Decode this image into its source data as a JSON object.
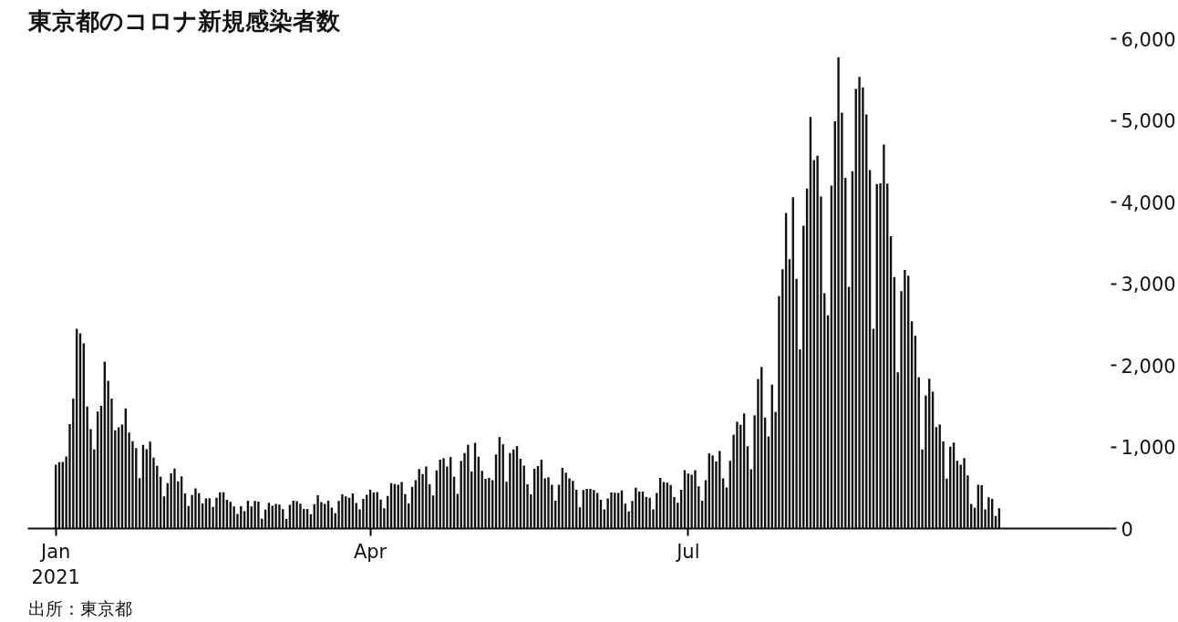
{
  "chart_data": {
    "type": "bar",
    "title": "東京都のコロナ新規感染者数",
    "color": "#111111",
    "grid": false,
    "x": [
      "2021-01-01",
      "2021-01-02",
      "2021-01-03",
      "2021-01-04",
      "2021-01-05",
      "2021-01-06",
      "2021-01-07",
      "2021-01-08",
      "2021-01-09",
      "2021-01-10",
      "2021-01-11",
      "2021-01-12",
      "2021-01-13",
      "2021-01-14",
      "2021-01-15",
      "2021-01-16",
      "2021-01-17",
      "2021-01-18",
      "2021-01-19",
      "2021-01-20",
      "2021-01-21",
      "2021-01-22",
      "2021-01-23",
      "2021-01-24",
      "2021-01-25",
      "2021-01-26",
      "2021-01-27",
      "2021-01-28",
      "2021-01-29",
      "2021-01-30",
      "2021-01-31",
      "2021-02-01",
      "2021-02-02",
      "2021-02-03",
      "2021-02-04",
      "2021-02-05",
      "2021-02-06",
      "2021-02-07",
      "2021-02-08",
      "2021-02-09",
      "2021-02-10",
      "2021-02-11",
      "2021-02-12",
      "2021-02-13",
      "2021-02-14",
      "2021-02-15",
      "2021-02-16",
      "2021-02-17",
      "2021-02-18",
      "2021-02-19",
      "2021-02-20",
      "2021-02-21",
      "2021-02-22",
      "2021-02-23",
      "2021-02-24",
      "2021-02-25",
      "2021-02-26",
      "2021-02-27",
      "2021-02-28",
      "2021-03-01",
      "2021-03-02",
      "2021-03-03",
      "2021-03-04",
      "2021-03-05",
      "2021-03-06",
      "2021-03-07",
      "2021-03-08",
      "2021-03-09",
      "2021-03-10",
      "2021-03-11",
      "2021-03-12",
      "2021-03-13",
      "2021-03-14",
      "2021-03-15",
      "2021-03-16",
      "2021-03-17",
      "2021-03-18",
      "2021-03-19",
      "2021-03-20",
      "2021-03-21",
      "2021-03-22",
      "2021-03-23",
      "2021-03-24",
      "2021-03-25",
      "2021-03-26",
      "2021-03-27",
      "2021-03-28",
      "2021-03-29",
      "2021-03-30",
      "2021-03-31",
      "2021-04-01",
      "2021-04-02",
      "2021-04-03",
      "2021-04-04",
      "2021-04-05",
      "2021-04-06",
      "2021-04-07",
      "2021-04-08",
      "2021-04-09",
      "2021-04-10",
      "2021-04-11",
      "2021-04-12",
      "2021-04-13",
      "2021-04-14",
      "2021-04-15",
      "2021-04-16",
      "2021-04-17",
      "2021-04-18",
      "2021-04-19",
      "2021-04-20",
      "2021-04-21",
      "2021-04-22",
      "2021-04-23",
      "2021-04-24",
      "2021-04-25",
      "2021-04-26",
      "2021-04-27",
      "2021-04-28",
      "2021-04-29",
      "2021-04-30",
      "2021-05-01",
      "2021-05-02",
      "2021-05-03",
      "2021-05-04",
      "2021-05-05",
      "2021-05-06",
      "2021-05-07",
      "2021-05-08",
      "2021-05-09",
      "2021-05-10",
      "2021-05-11",
      "2021-05-12",
      "2021-05-13",
      "2021-05-14",
      "2021-05-15",
      "2021-05-16",
      "2021-05-17",
      "2021-05-18",
      "2021-05-19",
      "2021-05-20",
      "2021-05-21",
      "2021-05-22",
      "2021-05-23",
      "2021-05-24",
      "2021-05-25",
      "2021-05-26",
      "2021-05-27",
      "2021-05-28",
      "2021-05-29",
      "2021-05-30",
      "2021-05-31",
      "2021-06-01",
      "2021-06-02",
      "2021-06-03",
      "2021-06-04",
      "2021-06-05",
      "2021-06-06",
      "2021-06-07",
      "2021-06-08",
      "2021-06-09",
      "2021-06-10",
      "2021-06-11",
      "2021-06-12",
      "2021-06-13",
      "2021-06-14",
      "2021-06-15",
      "2021-06-16",
      "2021-06-17",
      "2021-06-18",
      "2021-06-19",
      "2021-06-20",
      "2021-06-21",
      "2021-06-22",
      "2021-06-23",
      "2021-06-24",
      "2021-06-25",
      "2021-06-26",
      "2021-06-27",
      "2021-06-28",
      "2021-06-29",
      "2021-06-30",
      "2021-07-01",
      "2021-07-02",
      "2021-07-03",
      "2021-07-04",
      "2021-07-05",
      "2021-07-06",
      "2021-07-07",
      "2021-07-08",
      "2021-07-09",
      "2021-07-10",
      "2021-07-11",
      "2021-07-12",
      "2021-07-13",
      "2021-07-14",
      "2021-07-15",
      "2021-07-16",
      "2021-07-17",
      "2021-07-18",
      "2021-07-19",
      "2021-07-20",
      "2021-07-21",
      "2021-07-22",
      "2021-07-23",
      "2021-07-24",
      "2021-07-25",
      "2021-07-26",
      "2021-07-27",
      "2021-07-28",
      "2021-07-29",
      "2021-07-30",
      "2021-07-31",
      "2021-08-01",
      "2021-08-02",
      "2021-08-03",
      "2021-08-04",
      "2021-08-05",
      "2021-08-06",
      "2021-08-07",
      "2021-08-08",
      "2021-08-09",
      "2021-08-10",
      "2021-08-11",
      "2021-08-12",
      "2021-08-13",
      "2021-08-14",
      "2021-08-15",
      "2021-08-16",
      "2021-08-17",
      "2021-08-18",
      "2021-08-19",
      "2021-08-20",
      "2021-08-21",
      "2021-08-22",
      "2021-08-23",
      "2021-08-24",
      "2021-08-25",
      "2021-08-26",
      "2021-08-27",
      "2021-08-28",
      "2021-08-29",
      "2021-08-30",
      "2021-08-31",
      "2021-09-01",
      "2021-09-02",
      "2021-09-03",
      "2021-09-04",
      "2021-09-05",
      "2021-09-06",
      "2021-09-07",
      "2021-09-08",
      "2021-09-09",
      "2021-09-10",
      "2021-09-11",
      "2021-09-12",
      "2021-09-13",
      "2021-09-14",
      "2021-09-15",
      "2021-09-16",
      "2021-09-17",
      "2021-09-18",
      "2021-09-19",
      "2021-09-20",
      "2021-09-21",
      "2021-09-22",
      "2021-09-23",
      "2021-09-24",
      "2021-09-25",
      "2021-09-26",
      "2021-09-27",
      "2021-09-28"
    ],
    "values": [
      783,
      814,
      816,
      884,
      1278,
      1591,
      2447,
      2392,
      2268,
      1494,
      1219,
      970,
      1433,
      1502,
      2044,
      1809,
      1592,
      1204,
      1240,
      1274,
      1471,
      1175,
      1070,
      986,
      618,
      1026,
      973,
      1064,
      868,
      769,
      633,
      393,
      556,
      676,
      734,
      577,
      639,
      429,
      276,
      412,
      491,
      434,
      307,
      369,
      371,
      266,
      378,
      445,
      445,
      353,
      327,
      272,
      178,
      275,
      213,
      340,
      270,
      337,
      329,
      121,
      232,
      316,
      279,
      301,
      293,
      237,
      116,
      290,
      340,
      335,
      304,
      239,
      239,
      175,
      300,
      409,
      323,
      303,
      342,
      256,
      187,
      337,
      420,
      394,
      376,
      430,
      313,
      234,
      364,
      414,
      475,
      440,
      446,
      355,
      249,
      399,
      555,
      545,
      537,
      570,
      421,
      306,
      510,
      591,
      729,
      667,
      759,
      543,
      405,
      711,
      843,
      861,
      759,
      876,
      635,
      425,
      828,
      925,
      1027,
      698,
      1050,
      879,
      708,
      609,
      621,
      591,
      907,
      1121,
      1032,
      573,
      925,
      969,
      1010,
      854,
      772,
      542,
      419,
      732,
      766,
      843,
      614,
      629,
      535,
      340,
      537,
      743,
      684,
      614,
      583,
      476,
      260,
      471,
      487,
      487,
      472,
      436,
      351,
      235,
      369,
      440,
      439,
      435,
      467,
      304,
      209,
      337,
      501,
      452,
      453,
      388,
      376,
      236,
      435,
      619,
      570,
      562,
      534,
      386,
      317,
      476,
      714,
      673,
      660,
      716,
      518,
      342,
      593,
      920,
      896,
      822,
      950,
      614,
      502,
      830,
      1149,
      1308,
      1271,
      1410,
      1008,
      727,
      1387,
      1832,
      1979,
      1359,
      1128,
      1763,
      1429,
      2848,
      3177,
      3865,
      3300,
      4058,
      3058,
      2195,
      3709,
      4166,
      5042,
      4515,
      4566,
      4066,
      2884,
      2612,
      4200,
      4989,
      5773,
      5094,
      4295,
      2962,
      4377,
      5386,
      5534,
      5405,
      5074,
      4392,
      2447,
      4220,
      4228,
      4704,
      4227,
      3581,
      3081,
      1915,
      2909,
      3168,
      3099,
      2539,
      2362,
      1853,
      968,
      1629,
      1834,
      1675,
      1242,
      1273,
      1067,
      611,
      1004,
      1052,
      831,
      782,
      862,
      651,
      302,
      253,
      537,
      531,
      235,
      382,
      362,
      154,
      248
    ],
    "xlim": [
      "2020-12-24",
      "2021-10-30"
    ],
    "xticks": [
      {
        "value": "2021-01-01",
        "label": "Jan\n2021"
      },
      {
        "value": "2021-04-01",
        "label": "Apr"
      },
      {
        "value": "2021-07-01",
        "label": "Jul"
      }
    ],
    "ylim": [
      0,
      6000
    ],
    "yticks": [
      0,
      {
        "value": 1000,
        "label": "1,000"
      },
      {
        "value": 2000,
        "label": "2,000"
      },
      {
        "value": 3000,
        "label": "3,000"
      },
      {
        "value": 4000,
        "label": "4,000"
      },
      {
        "value": 5000,
        "label": "5,000"
      },
      {
        "value": 6000,
        "label": "6,000"
      }
    ],
    "annotations": [
      "出所：東京都"
    ]
  }
}
